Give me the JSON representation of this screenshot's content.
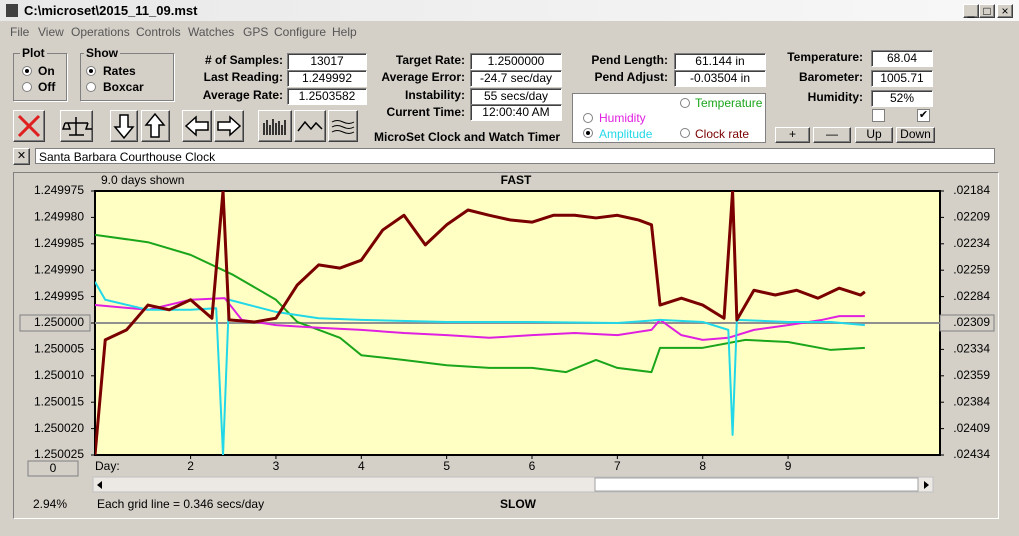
{
  "window": {
    "title": "C:\\microset\\2015_11_09.mst"
  },
  "menu": [
    "File",
    "View",
    "Operations",
    "Controls",
    "Watches",
    "GPS",
    "Configure",
    "Help"
  ],
  "plot_group": {
    "title": "Plot",
    "options": [
      "On",
      "Off"
    ]
  },
  "show_group": {
    "title": "Show",
    "options": [
      "Rates",
      "Boxcar"
    ]
  },
  "fields": [
    {
      "label": "# of Samples:",
      "value": "13017"
    },
    {
      "label": "Last Reading:",
      "value": "1.249992"
    },
    {
      "label": "Average Rate:",
      "value": "1.2503582"
    },
    {
      "label": "Target Rate:",
      "value": "1.2500000"
    },
    {
      "label": "Average Error:",
      "value": "-24.7 sec/day"
    },
    {
      "label": "Instability:",
      "value": "55 secs/day"
    },
    {
      "label": "Current Time:",
      "value": "12:00:40 AM"
    },
    {
      "label": "Pend Length:",
      "value": "61.144 in"
    },
    {
      "label": "Pend Adjust:",
      "value": "-0.03504 in"
    },
    {
      "label": "Temperature:",
      "value": "68.04"
    },
    {
      "label": "Barometer:",
      "value": "1005.71"
    },
    {
      "label": "Humidity:",
      "value": "52%"
    }
  ],
  "app_name": "MicroSet Clock and Watch Timer",
  "buttons": [
    "+",
    "—",
    "Up",
    "Down"
  ],
  "watch_name": "Santa Barbara Courthouse Clock",
  "chart_data": {
    "type": "line",
    "days_shown": "9.0 days shown",
    "top_label": "FAST",
    "bottom_label": "SLOW",
    "xlabel": "Day:",
    "grid_note": "Each grid line = 0.346 secs/day",
    "status": "2.94%",
    "offset_button": "0",
    "xlim": [
      0.88,
      10.78
    ],
    "xticks": [
      2,
      3,
      4,
      5,
      6,
      7,
      8,
      9
    ],
    "ylim": [
      1.250025,
      1.249975
    ],
    "yticks": [
      {
        "value": 1.249975,
        "label": "1.249975"
      },
      {
        "value": 1.24998,
        "label": "1.249980"
      },
      {
        "value": 1.249985,
        "label": "1.249985"
      },
      {
        "value": 1.24999,
        "label": "1.249990"
      },
      {
        "value": 1.249995,
        "label": "1.249995"
      },
      {
        "value": 1.25,
        "label": "1.250000"
      },
      {
        "value": 1.250005,
        "label": "1.250005"
      },
      {
        "value": 1.25001,
        "label": "1.250010"
      },
      {
        "value": 1.250015,
        "label": "1.250015"
      },
      {
        "value": 1.25002,
        "label": "1.250020"
      },
      {
        "value": 1.250025,
        "label": "1.250025"
      }
    ],
    "y2lim": [
      0.02434,
      0.02184
    ],
    "y2ticks": [
      {
        "value": 0.02184,
        "label": ".02184"
      },
      {
        "value": 0.02209,
        "label": ".02209"
      },
      {
        "value": 0.02234,
        "label": ".02234"
      },
      {
        "value": 0.02259,
        "label": ".02259"
      },
      {
        "value": 0.02284,
        "label": ".02284"
      },
      {
        "value": 0.02309,
        "label": ".02309"
      },
      {
        "value": 0.02334,
        "label": ".02334"
      },
      {
        "value": 0.02359,
        "label": ".02359"
      },
      {
        "value": 0.02384,
        "label": ".02384"
      },
      {
        "value": 0.02409,
        "label": ".02409"
      },
      {
        "value": 0.02434,
        "label": ".02434"
      }
    ],
    "ref_line": 1.25,
    "series": [
      {
        "name": "Temperature",
        "color": "#1aa51a",
        "width": 2,
        "x": [
          0.88,
          1.5,
          2.0,
          2.5,
          3.0,
          3.25,
          3.5,
          3.75,
          4.0,
          4.5,
          5.0,
          5.5,
          6.0,
          6.4,
          6.75,
          7.0,
          7.4,
          7.5,
          8.0,
          8.5,
          9.0,
          9.5,
          9.9
        ],
        "values": [
          1.2499833,
          1.2499847,
          1.2499871,
          1.2499909,
          1.2499956,
          1.2499998,
          1.2500013,
          1.2500028,
          1.2500061,
          1.250007,
          1.250008,
          1.2500085,
          1.2500085,
          1.2500093,
          1.250007,
          1.2500085,
          1.2500093,
          1.2500047,
          1.2500047,
          1.2500032,
          1.2500036,
          1.2500051,
          1.2500047
        ]
      },
      {
        "name": "Humidity",
        "color": "#e020e0",
        "width": 2,
        "x": [
          0.88,
          1.5,
          2.0,
          2.4,
          2.6,
          3.0,
          3.5,
          4.0,
          4.5,
          5.0,
          5.5,
          6.0,
          6.5,
          7.0,
          7.4,
          7.5,
          7.75,
          8.0,
          8.3,
          8.6,
          9.0,
          9.4,
          9.6,
          9.9
        ],
        "values": [
          1.2499966,
          1.2499975,
          1.2499956,
          1.2499953,
          1.2499994,
          1.2500004,
          1.2500009,
          1.2500013,
          1.2500019,
          1.2500023,
          1.2500028,
          1.2500023,
          1.2500019,
          1.2500023,
          1.2500013,
          1.2499994,
          1.2500023,
          1.2500032,
          1.2500028,
          1.2500013,
          1.2500004,
          1.2499994,
          1.2499987,
          1.2499987
        ]
      },
      {
        "name": "Amplitude",
        "color": "#22d8e8",
        "width": 2,
        "x": [
          0.88,
          1.0,
          1.5,
          2.0,
          2.3,
          2.38,
          2.45,
          3.0,
          3.5,
          4.0,
          5.0,
          6.0,
          7.0,
          7.5,
          8.0,
          8.3,
          8.35,
          8.4,
          9.0,
          9.5,
          9.9
        ],
        "values": [
          1.2499922,
          1.2499956,
          1.2499975,
          1.2499975,
          1.2499972,
          1.250025,
          1.2499956,
          1.2499979,
          1.2499991,
          1.2499994,
          1.2499998,
          1.2499998,
          1.25,
          1.2499994,
          1.2499998,
          1.2500013,
          1.2500212,
          1.2499994,
          1.2499998,
          1.2499998,
          1.2500004
        ]
      },
      {
        "name": "Clock rate",
        "color": "#7a0000",
        "width": 3,
        "x": [
          0.88,
          1.0,
          1.25,
          1.5,
          1.75,
          2.0,
          2.25,
          2.38,
          2.45,
          2.75,
          3.0,
          3.25,
          3.5,
          3.75,
          4.0,
          4.25,
          4.5,
          4.75,
          5.0,
          5.25,
          5.5,
          5.75,
          6.0,
          6.25,
          6.5,
          6.75,
          7.0,
          7.25,
          7.4,
          7.5,
          7.75,
          8.0,
          8.25,
          8.35,
          8.4,
          8.6,
          8.85,
          9.1,
          9.35,
          9.6,
          9.85,
          9.9
        ],
        "values": [
          1.250025,
          1.2500032,
          1.2500013,
          1.2499966,
          1.2499975,
          1.2499956,
          1.2499991,
          1.249975,
          1.2499994,
          1.2499998,
          1.2499991,
          1.2499928,
          1.249989,
          1.2499896,
          1.2499881,
          1.2499824,
          1.2499796,
          1.2499852,
          1.2499814,
          1.2499786,
          1.2499796,
          1.2499805,
          1.2499809,
          1.2499796,
          1.2499796,
          1.2499801,
          1.2499796,
          1.2499805,
          1.2499814,
          1.2499966,
          1.2499953,
          1.2499966,
          1.2499991,
          1.249975,
          1.2499994,
          1.2499938,
          1.2499947,
          1.2499938,
          1.2499953,
          1.2499934,
          1.2499947,
          1.2499941
        ]
      }
    ]
  }
}
